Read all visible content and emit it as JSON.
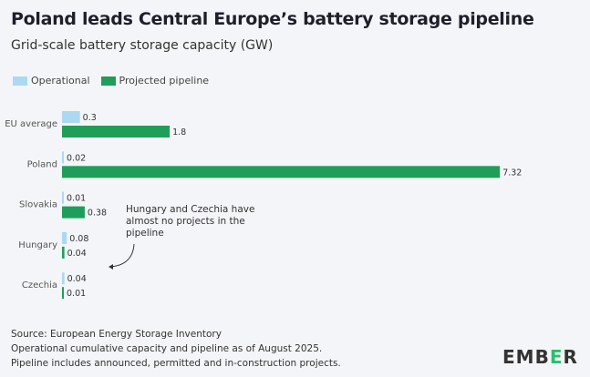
{
  "title": "Poland leads Central Europe’s battery storage pipeline",
  "subtitle": "Grid-scale battery storage capacity (GW)",
  "colors": {
    "operational": "#acd8f2",
    "pipeline": "#1f9e5a",
    "background": "#f4f5f8"
  },
  "chart_data": {
    "type": "bar",
    "orientation": "horizontal",
    "title": "Poland leads Central Europe’s battery storage pipeline",
    "subtitle": "Grid-scale battery storage capacity (GW)",
    "categories": [
      "EU average",
      "Poland",
      "Slovakia",
      "Hungary",
      "Czechia"
    ],
    "series": [
      {
        "name": "Operational",
        "values": [
          0.3,
          0.02,
          0.01,
          0.08,
          0.04
        ],
        "labels": [
          "0.3",
          "0.02",
          "0.01",
          "0.08",
          "0.04"
        ]
      },
      {
        "name": "Projected pipeline",
        "values": [
          1.8,
          7.32,
          0.38,
          0.04,
          0.01
        ],
        "labels": [
          "1.8",
          "7.32",
          "0.38",
          "0.04",
          "0.01"
        ]
      }
    ],
    "legend": "top-left",
    "grid": false,
    "annotation": "Hungary and Czechia have almost no projects in the pipeline"
  },
  "footer": [
    "Source: European Energy Storage Inventory",
    "Operational cumulative capacity and pipeline as of August 2025.",
    "Pipeline includes announced, permitted and in-construction projects."
  ],
  "logo": {
    "pre": "EMB",
    "mid": "E",
    "post": "R"
  }
}
